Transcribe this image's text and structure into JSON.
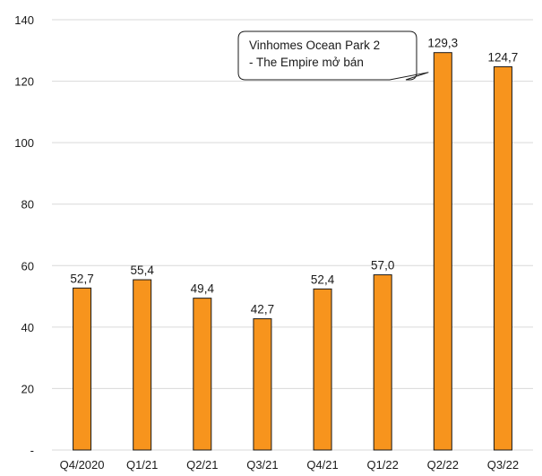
{
  "chart_data": {
    "type": "bar",
    "categories": [
      "Q4/2020",
      "Q1/21",
      "Q2/21",
      "Q3/21",
      "Q4/21",
      "Q1/22",
      "Q2/22",
      "Q3/22"
    ],
    "values": [
      52.7,
      55.4,
      49.4,
      42.7,
      52.4,
      57.0,
      129.3,
      124.7
    ],
    "value_labels": [
      "52,7",
      "55,4",
      "49,4",
      "42,7",
      "52,4",
      "57,0",
      "129,3",
      "124,7"
    ],
    "ylim": [
      0,
      140
    ],
    "yticks": [
      0,
      20,
      40,
      60,
      80,
      100,
      120,
      140
    ],
    "ytick_labels": [
      "-",
      "20",
      "40",
      "60",
      "80",
      "100",
      "120",
      "140"
    ],
    "grid": true,
    "bar_color": "#F7941D",
    "bar_edge_color": "#1a1a1a",
    "grid_color": "#D9D9D9",
    "annotation": {
      "lines": [
        "Vinhomes Ocean Park 2",
        "- The Empire mở bán"
      ],
      "points_to": "Q2/22"
    }
  }
}
